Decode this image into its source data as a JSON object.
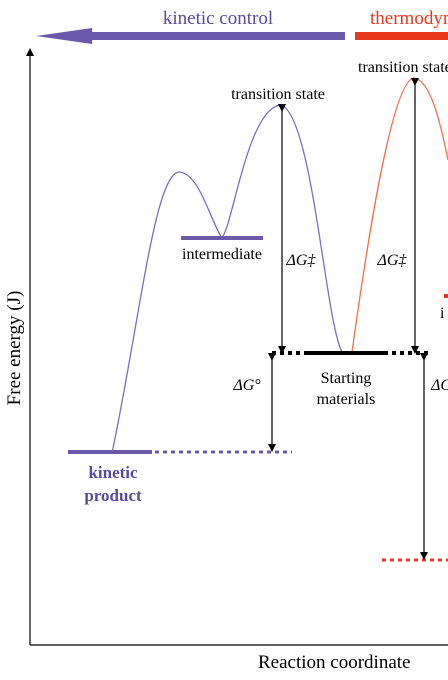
{
  "banner": {
    "kinetic_label": "kinetic control",
    "thermo_label": "thermodynamic control"
  },
  "axes": {
    "ylabel": "Free energy (J)",
    "xlabel": "Reaction coordinate"
  },
  "labels": {
    "ts_kinetic": "transition state",
    "ts_thermo": "transition state",
    "intermediate": "intermediate",
    "intermediate_right_partial": "i",
    "dg_act_kinetic": "ΔG‡",
    "dg_act_thermo": "ΔG‡",
    "dg_std": "ΔG°",
    "dg_std_right_partial": "ΔC",
    "starting_line1": "Starting",
    "starting_line2": "materials",
    "kinetic_product_line1": "kinetic",
    "kinetic_product_line2": "product"
  },
  "colors": {
    "kinetic": "#6a5aa9",
    "kinetic_text": "#5a4a9e",
    "thermo": "#e8381e",
    "thermo_curve": "#f07050",
    "axis": "#000000"
  }
}
